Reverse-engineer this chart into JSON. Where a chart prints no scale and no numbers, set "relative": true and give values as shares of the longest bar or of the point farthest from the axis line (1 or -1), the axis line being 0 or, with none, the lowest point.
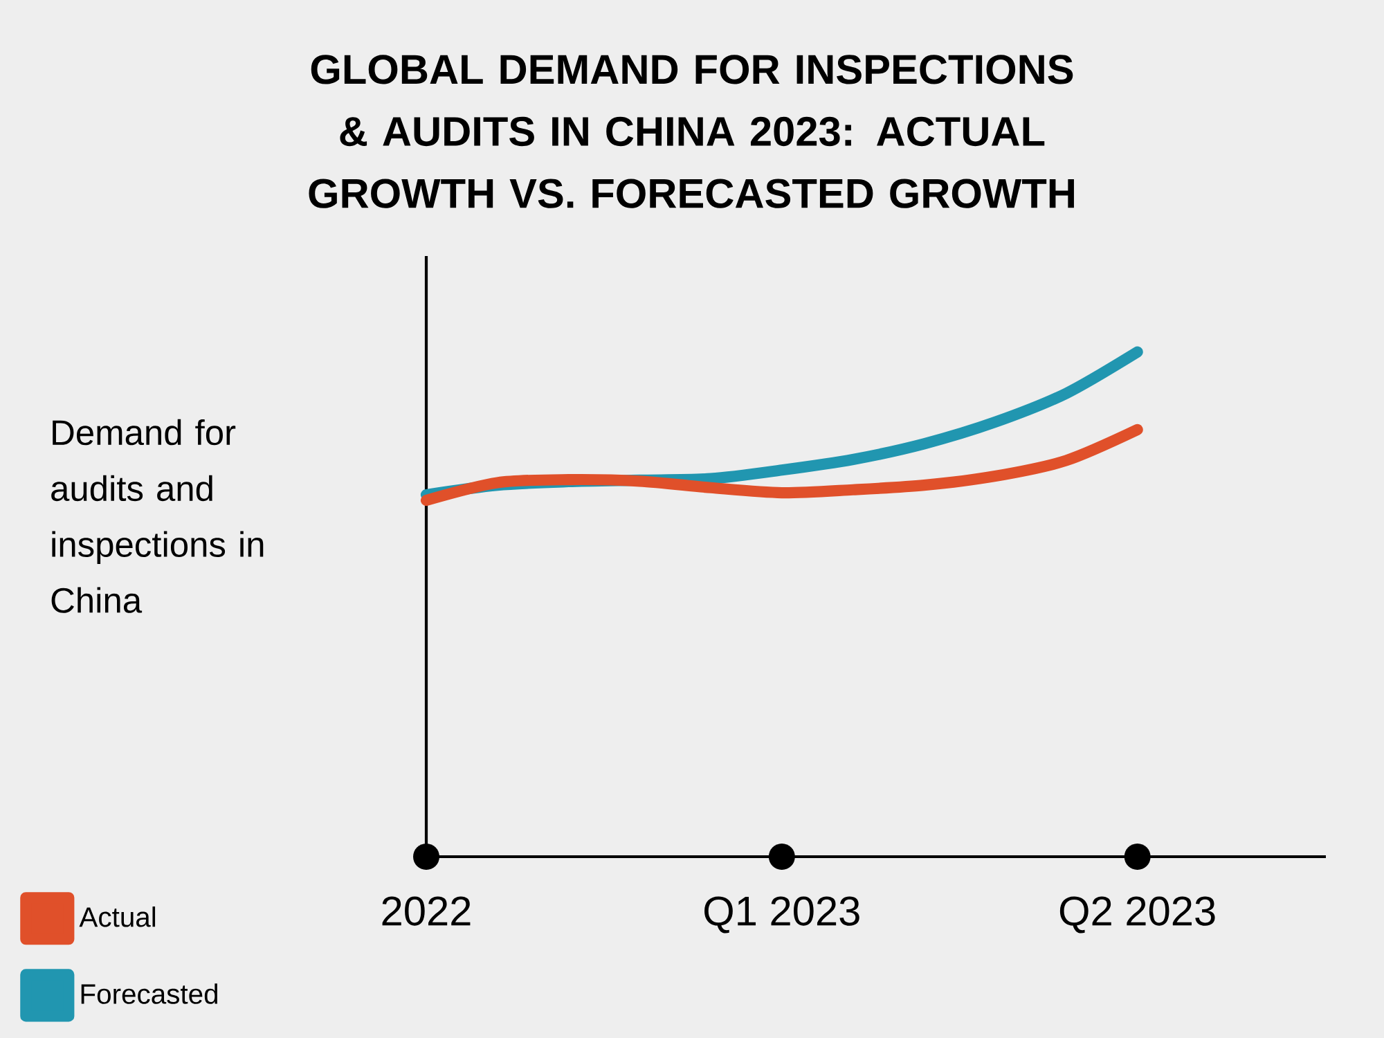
{
  "chart_data": {
    "type": "line",
    "title": "GLOBAL DEMAND FOR INSPECTIONS & AUDITS IN CHINA 2023: ACTUAL GROWTH VS. FORECASTED GROWTH",
    "ylabel": "Demand for audits and inspections in China",
    "relative": true,
    "categories": [
      "2022",
      null,
      null,
      null,
      null,
      "Q1 2023",
      null,
      null,
      null,
      null,
      "Q2 2023"
    ],
    "legend": "bottom left",
    "line_style": "solid",
    "marker": "none",
    "series": [
      {
        "name": "Actual",
        "color": "#e0502a",
        "values": [
          0.706,
          0.741,
          0.747,
          0.744,
          0.731,
          0.721,
          0.727,
          0.736,
          0.754,
          0.785,
          0.846
        ]
      },
      {
        "name": "Forecasted",
        "color": "#2196b0",
        "values": [
          0.717,
          0.736,
          0.743,
          0.746,
          0.749,
          0.766,
          0.787,
          0.818,
          0.861,
          0.918,
          1.0
        ]
      }
    ]
  }
}
